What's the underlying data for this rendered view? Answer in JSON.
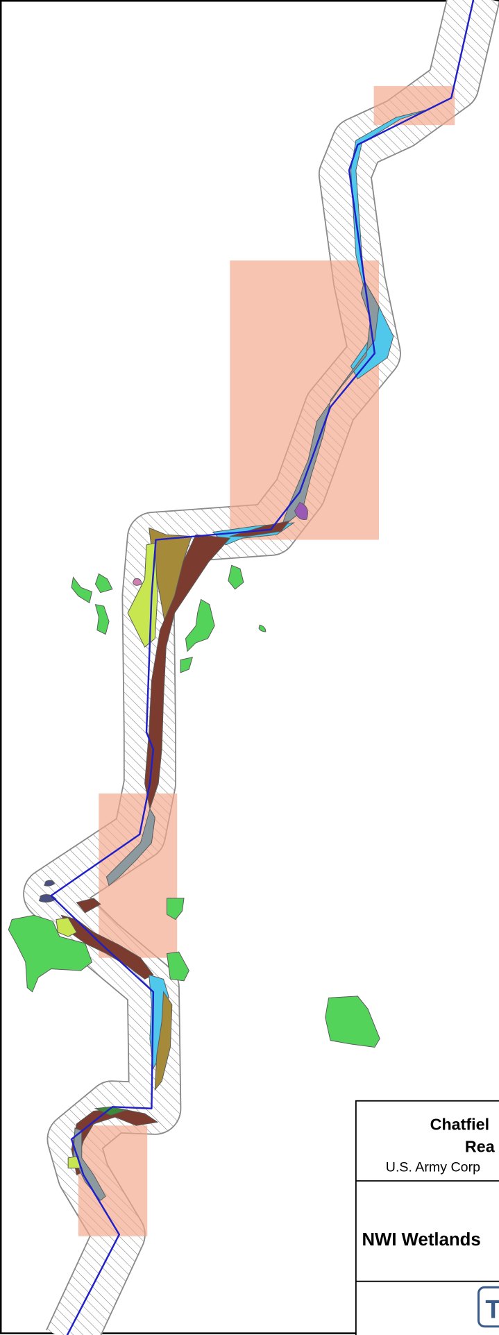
{
  "title_block": {
    "project_line1": "Chatfiel",
    "project_line2": "Rea",
    "agency": "U.S. Army Corp",
    "map_title": "NWI Wetlands",
    "logo": "T"
  }
}
